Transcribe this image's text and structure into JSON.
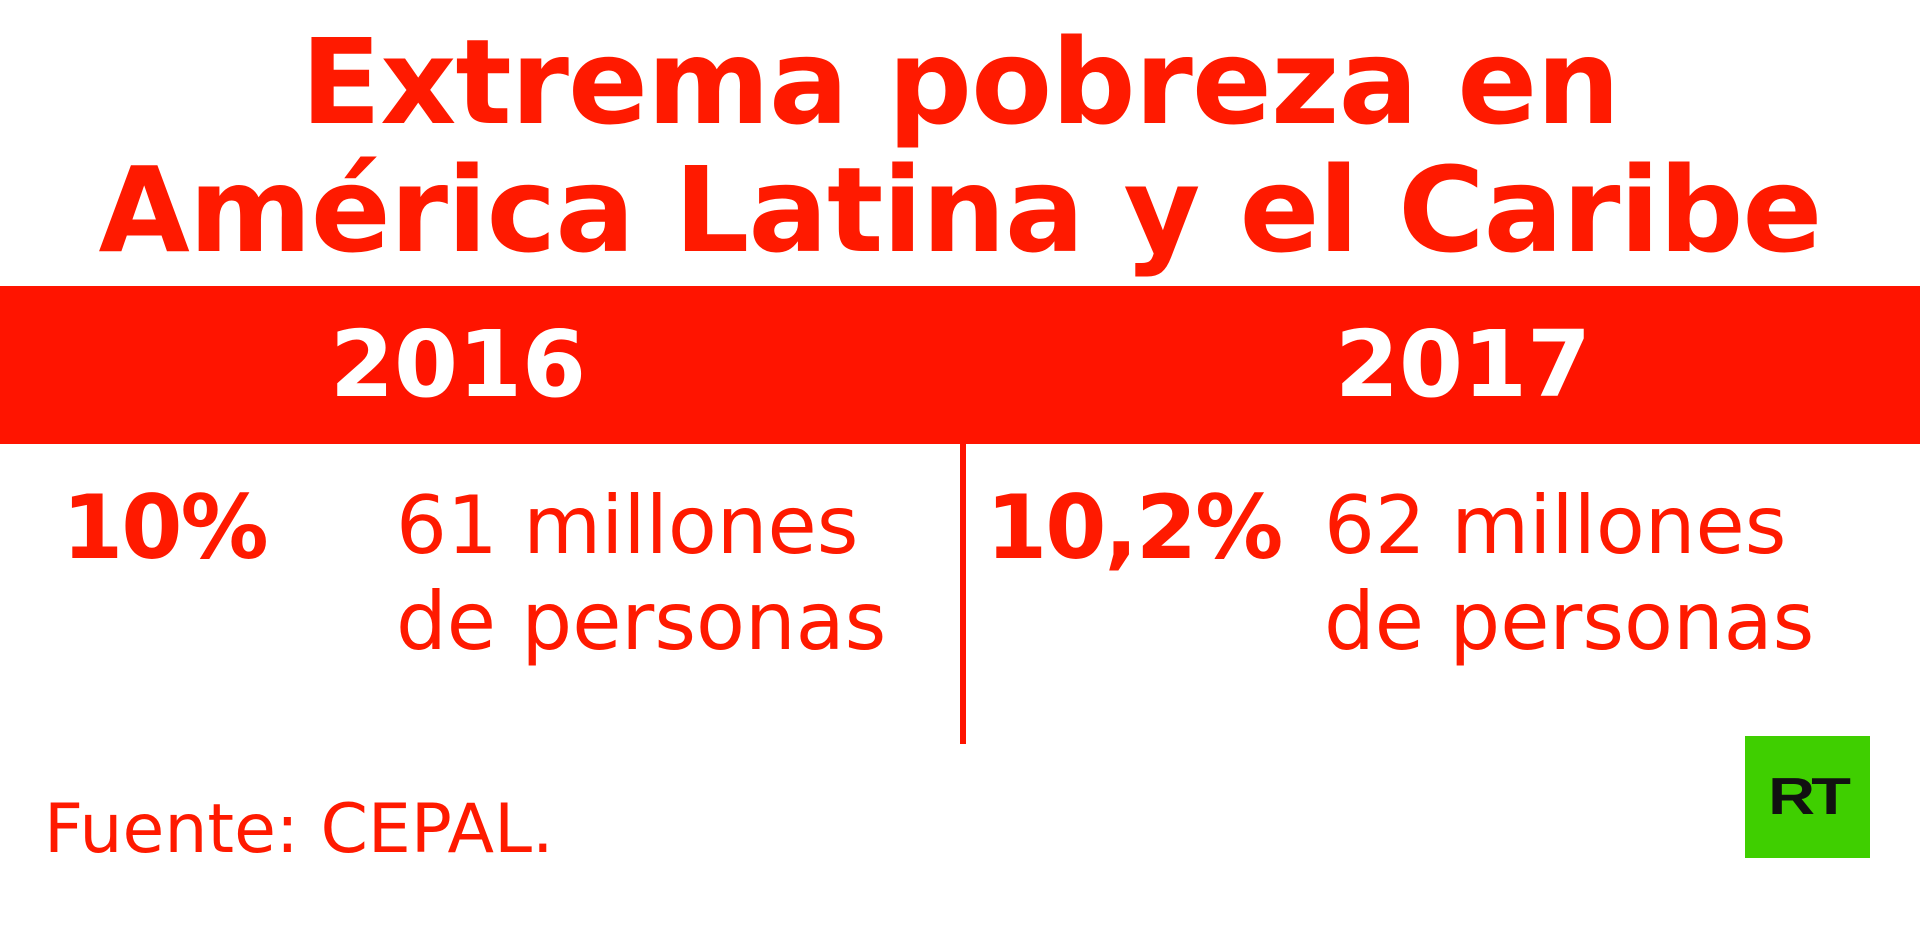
{
  "title": {
    "line1": "Extrema pobreza en",
    "line2": "América Latina y el Caribe"
  },
  "columns": [
    {
      "year": "2016",
      "percent": "10%",
      "people_line1": "61 millones",
      "people_line2": "de personas"
    },
    {
      "year": "2017",
      "percent": "10,2%",
      "people_line1": "62 millones",
      "people_line2": "de personas"
    }
  ],
  "source": "Fuente: CEPAL.",
  "logo": {
    "text": "RT",
    "background": "#3fcf00"
  },
  "colors": {
    "accent": "#ff1400",
    "text_on_accent": "#ffffff"
  }
}
